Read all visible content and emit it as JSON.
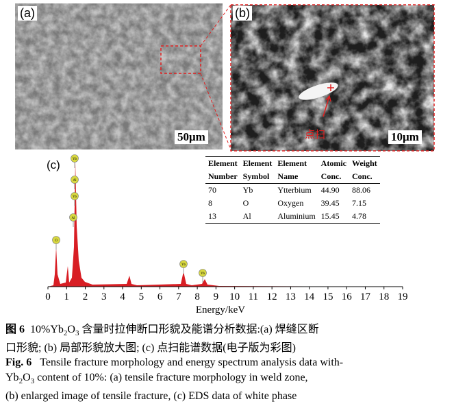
{
  "panels": {
    "a": {
      "label": "(a)",
      "scale_bar": "50μm"
    },
    "b": {
      "label": "(b)",
      "scale_bar": "10μm",
      "annotation": "点扫"
    },
    "c": {
      "label": "(c)"
    }
  },
  "spectrum": {
    "xlabel": "Energy/keV",
    "xlim": [
      0,
      19
    ],
    "xticks": [
      0,
      1,
      2,
      3,
      4,
      5,
      6,
      7,
      8,
      9,
      10,
      11,
      12,
      13,
      14,
      15,
      16,
      17,
      18,
      19
    ],
    "peak_labels": [
      "Yb",
      "Al",
      "Yb",
      "Al",
      "O",
      "Yb",
      "Yb"
    ]
  },
  "table": {
    "header": [
      [
        "Element",
        "Element",
        "Element",
        "Atomic",
        "Weight"
      ],
      [
        "Number",
        "Symbol",
        "Name",
        "Conc.",
        "Conc."
      ]
    ],
    "rows": [
      [
        "70",
        "Yb",
        "Ytterbium",
        "44.90",
        "88.06"
      ],
      [
        "8",
        "O",
        "Oxygen",
        "39.45",
        "7.15"
      ],
      [
        "13",
        "Al",
        "Aluminium",
        "15.45",
        "4.78"
      ]
    ]
  },
  "caption_cn": {
    "label": "图 6",
    "pre": "10%Yb",
    "sub1": "2",
    "mid": "O",
    "sub2": "3",
    "line1": " 含量时拉伸断口形貌及能谱分析数据:(a) 焊缝区断",
    "line2": "口形貌; (b) 局部形貌放大图; (c) 点扫能谱数据(电子版为彩图)"
  },
  "caption_en": {
    "label": "Fig. 6",
    "line1": "Tensile fracture morphology and energy spectrum analysis data with-",
    "pre": "Yb",
    "sub1": "2",
    "mid": "O",
    "sub2": "3",
    "line2": " content of 10%: (a) tensile fracture morphology in weld zone,",
    "line3": "(b) enlarged image of tensile fracture, (c) EDS data of white phase"
  }
}
